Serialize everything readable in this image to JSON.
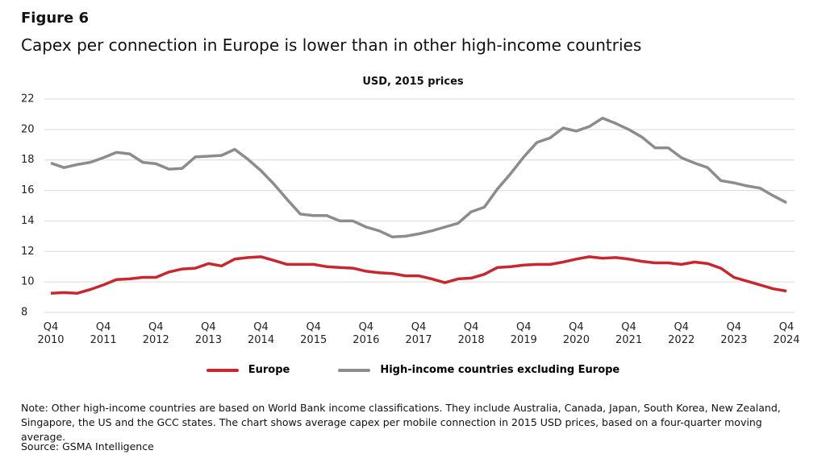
{
  "chart_data": {
    "type": "line",
    "title": "Figure 6",
    "subtitle": "Capex per connection in Europe is lower than in other high-income countries",
    "y_label": "USD, 2015 prices",
    "categories": [
      "Q4\n2010",
      null,
      null,
      null,
      "Q4\n2011",
      null,
      null,
      null,
      "Q4\n2012",
      null,
      null,
      null,
      "Q4\n2013",
      null,
      null,
      null,
      "Q4\n2014",
      null,
      null,
      null,
      "Q4\n2015",
      null,
      null,
      null,
      "Q4\n2016",
      null,
      null,
      null,
      "Q4\n2017",
      null,
      null,
      null,
      "Q4\n2018",
      null,
      null,
      null,
      "Q4\n2019",
      null,
      null,
      null,
      "Q4\n2020",
      null,
      null,
      null,
      "Q4\n2021",
      null,
      null,
      null,
      "Q4\n2022",
      null,
      null,
      null,
      "Q4\n2023",
      null,
      null,
      null,
      "Q4\n2024"
    ],
    "series": [
      {
        "name": "Europe",
        "color": "#c8282d",
        "values": [
          9.25,
          9.3,
          9.25,
          9.5,
          9.8,
          10.15,
          10.2,
          10.3,
          10.3,
          10.65,
          10.85,
          10.9,
          11.2,
          11.05,
          11.5,
          11.6,
          11.65,
          11.4,
          11.15,
          11.15,
          11.15,
          11.0,
          10.95,
          10.9,
          10.7,
          10.6,
          10.55,
          10.4,
          10.4,
          10.2,
          9.95,
          10.2,
          10.25,
          10.5,
          10.95,
          11.0,
          11.1,
          11.15,
          11.15,
          11.3,
          11.5,
          11.65,
          11.55,
          11.6,
          11.5,
          11.35,
          11.25,
          11.25,
          11.15,
          11.3,
          11.2,
          10.9,
          10.3,
          10.05,
          9.8,
          9.55,
          9.4
        ]
      },
      {
        "name": "High-income countries excluding Europe",
        "color": "#8c8c8c",
        "values": [
          17.8,
          17.5,
          17.7,
          17.85,
          18.15,
          18.5,
          18.4,
          17.85,
          17.75,
          17.4,
          17.45,
          18.2,
          18.25,
          18.3,
          18.7,
          18.05,
          17.3,
          16.4,
          15.4,
          14.45,
          14.35,
          14.35,
          14.0,
          14.0,
          13.6,
          13.35,
          12.95,
          13.0,
          13.15,
          13.35,
          13.6,
          13.85,
          14.6,
          14.9,
          16.1,
          17.1,
          18.2,
          19.15,
          19.45,
          20.1,
          19.9,
          20.2,
          20.75,
          20.4,
          20.0,
          19.5,
          18.8,
          18.8,
          18.15,
          17.8,
          17.5,
          16.65,
          16.5,
          16.3,
          16.15,
          15.65,
          15.2
        ]
      }
    ],
    "ylim": [
      8,
      22
    ],
    "yticks": [
      8,
      10,
      12,
      14,
      16,
      18,
      20,
      22
    ],
    "grid": true,
    "legend": "bottom",
    "note": "Note:  Other high-income countries are based on World Bank income classifications. They include Australia, Canada, Japan, South Korea, New Zealand, Singapore, the US and the GCC states. The chart shows average capex per mobile connection in 2015 USD prices, based on a four-quarter moving average.",
    "source": "Source: GSMA Intelligence"
  }
}
